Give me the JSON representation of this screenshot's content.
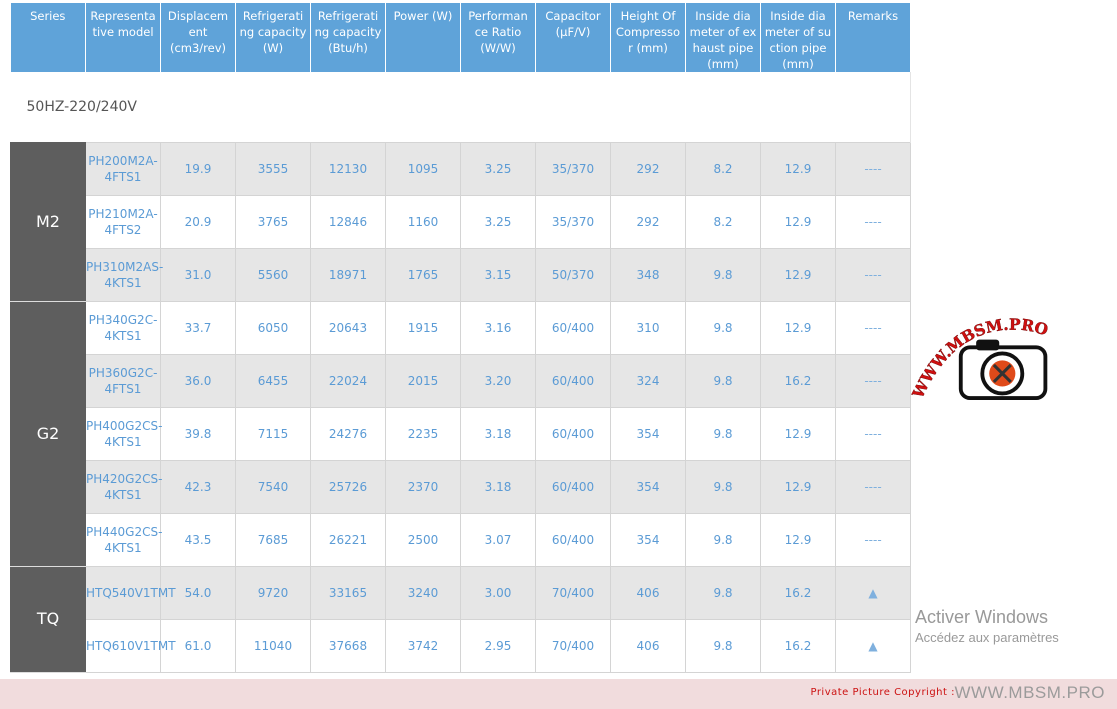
{
  "headers": [
    "Series",
    "Representa tive model",
    "Displacem ent (cm3/rev)",
    "Refrigerati ng capacity (W)",
    "Refrigerati ng capacity (Btu/h)",
    "Power (W)",
    "Performan ce Ratio (W/W)",
    "Capacitor (μF/V)",
    "Height Of Compresso r (mm)",
    "Inside dia meter of ex haust pipe (mm)",
    "Inside dia meter of su ction pipe (mm)",
    "Remarks"
  ],
  "subheading": "50HZ-220/240V",
  "groups": [
    {
      "series": "M2",
      "rows": [
        [
          "PH200M2A-4FTS1",
          "19.9",
          "3555",
          "12130",
          "1095",
          "3.25",
          "35/370",
          "292",
          "8.2",
          "12.9",
          "----"
        ],
        [
          "PH210M2A-4FTS2",
          "20.9",
          "3765",
          "12846",
          "1160",
          "3.25",
          "35/370",
          "292",
          "8.2",
          "12.9",
          "----"
        ],
        [
          "PH310M2AS-4KTS1",
          "31.0",
          "5560",
          "18971",
          "1765",
          "3.15",
          "50/370",
          "348",
          "9.8",
          "12.9",
          "----"
        ]
      ]
    },
    {
      "series": "G2",
      "rows": [
        [
          "PH340G2C-4KTS1",
          "33.7",
          "6050",
          "20643",
          "1915",
          "3.16",
          "60/400",
          "310",
          "9.8",
          "12.9",
          "----"
        ],
        [
          "PH360G2C-4FTS1",
          "36.0",
          "6455",
          "22024",
          "2015",
          "3.20",
          "60/400",
          "324",
          "9.8",
          "16.2",
          "----"
        ],
        [
          "PH400G2CS-4KTS1",
          "39.8",
          "7115",
          "24276",
          "2235",
          "3.18",
          "60/400",
          "354",
          "9.8",
          "12.9",
          "----"
        ],
        [
          "PH420G2CS-4KTS1",
          "42.3",
          "7540",
          "25726",
          "2370",
          "3.18",
          "60/400",
          "354",
          "9.8",
          "12.9",
          "----"
        ],
        [
          "PH440G2CS-4KTS1",
          "43.5",
          "7685",
          "26221",
          "2500",
          "3.07",
          "60/400",
          "354",
          "9.8",
          "12.9",
          "----"
        ]
      ]
    },
    {
      "series": "TQ",
      "rows": [
        [
          "HTQ540V1TMT",
          "54.0",
          "9720",
          "33165",
          "3240",
          "3.00",
          "70/400",
          "406",
          "9.8",
          "16.2",
          "▲"
        ],
        [
          "HTQ610V1TMT",
          "61.0",
          "11040",
          "37668",
          "3742",
          "2.95",
          "70/400",
          "406",
          "9.8",
          "16.2",
          "▲"
        ]
      ]
    }
  ],
  "overlay": {
    "line1": "Activer Windows",
    "line2": "Accédez aux paramètres"
  },
  "watermark": {
    "logo_text": "WWW.MBSM.PRO",
    "icon": "camera-wrench-icon",
    "color": "#d01010"
  },
  "footer": {
    "label": "Private Picture Copyright :",
    "site": "WWW.MBSM.PRO"
  },
  "colors": {
    "header": "#5fa3d9",
    "series": "#5e5e5e",
    "text": "#5b9bd5",
    "row_alt": "#e6e6e6",
    "footer": "#f1dcdd"
  }
}
